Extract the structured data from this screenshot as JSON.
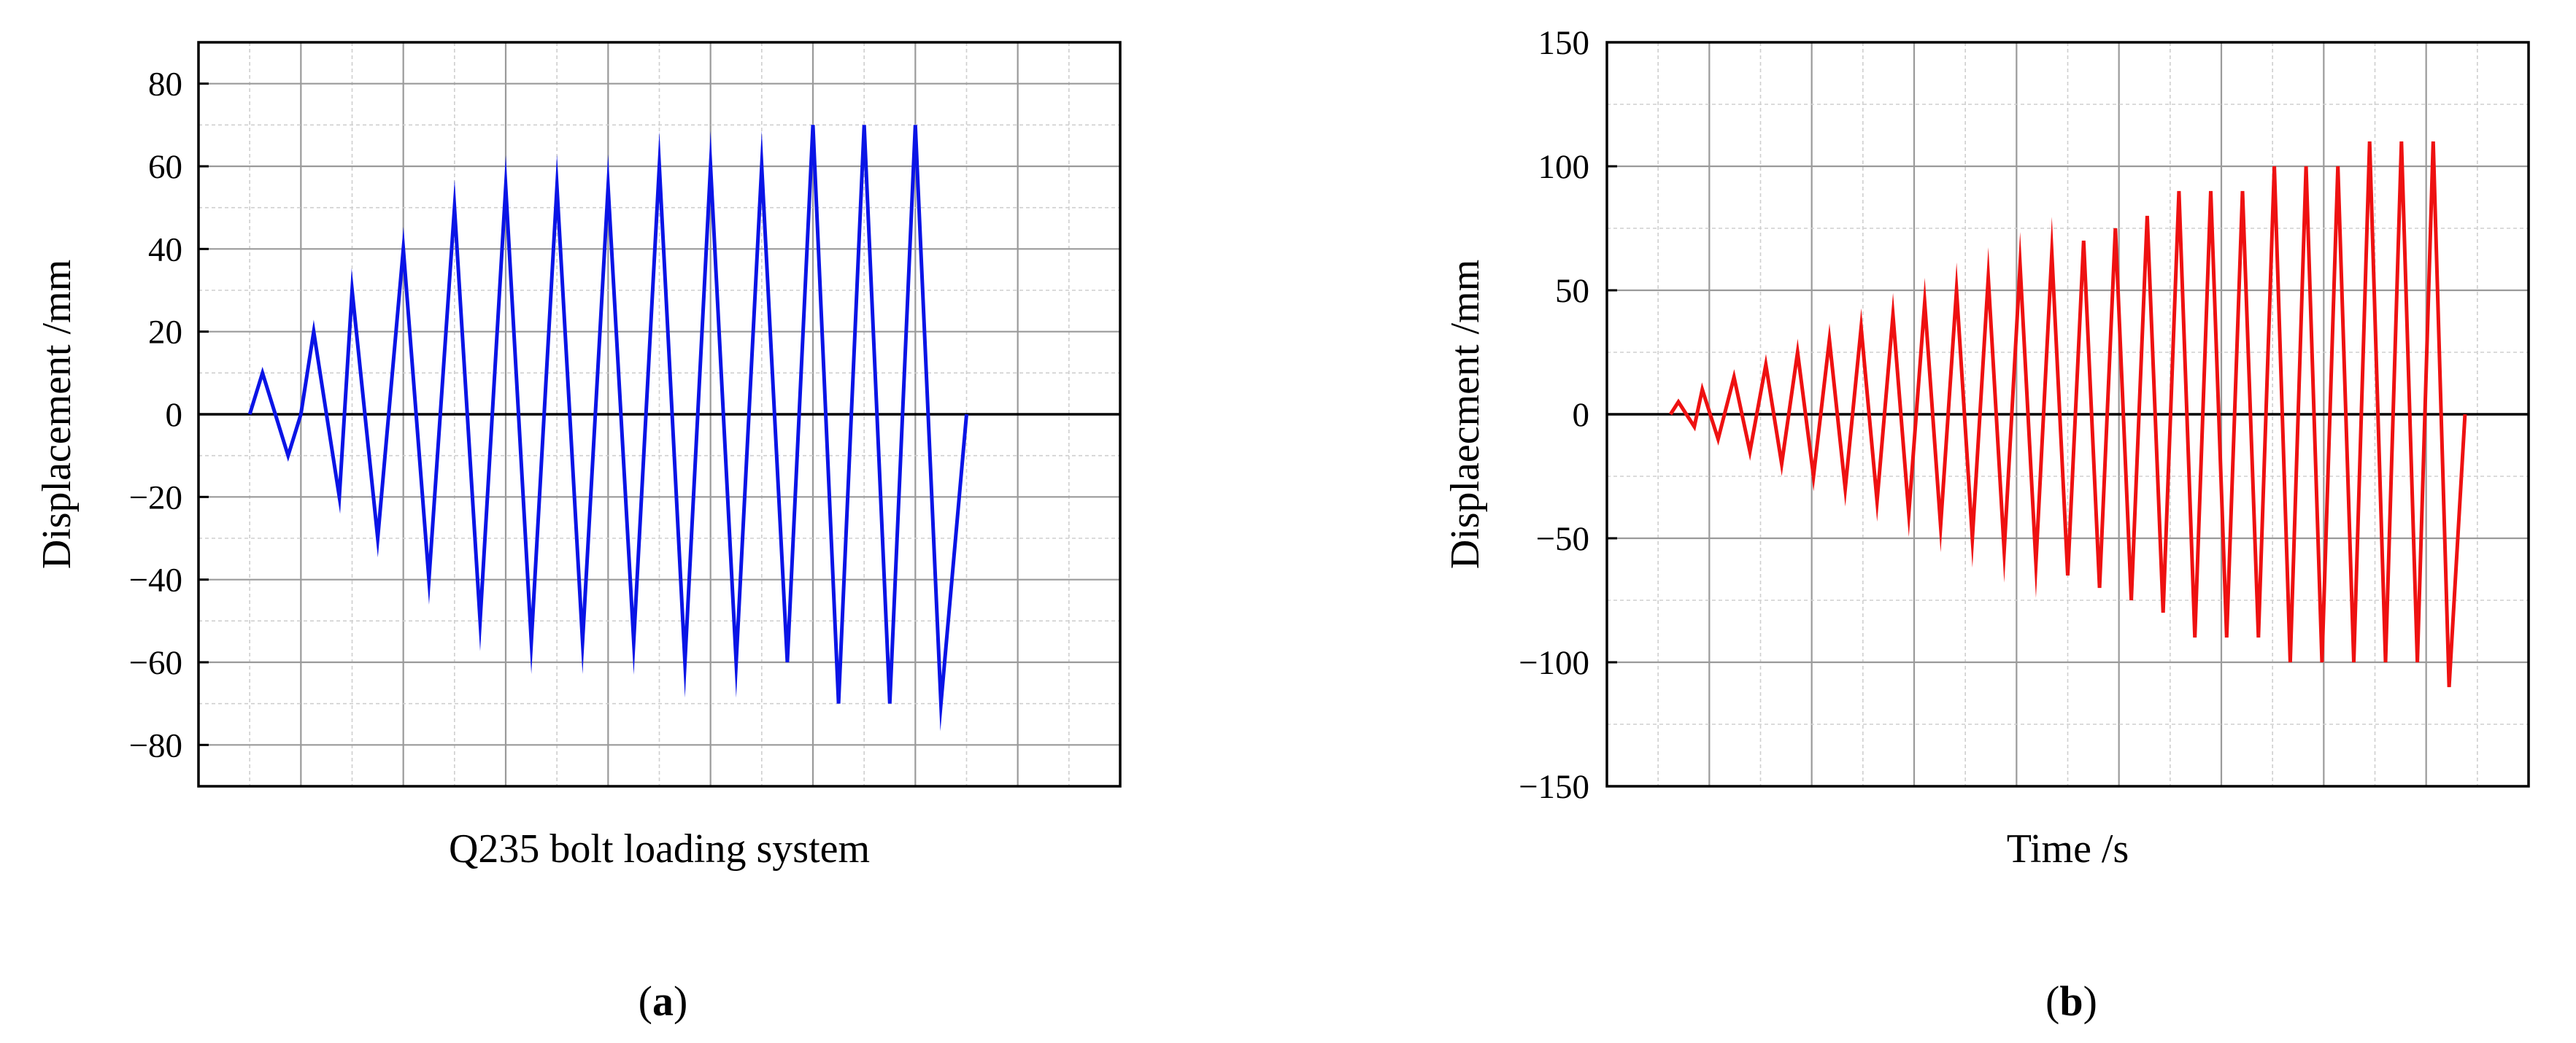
{
  "chart_data": [
    {
      "type": "line",
      "panel_label": {
        "open": "(",
        "letter": "a",
        "close": ")"
      },
      "xlabel": "Q235 bolt loading system",
      "ylabel": "Displacement /mm",
      "ylim": [
        -90,
        90
      ],
      "yticks": [
        -80,
        -60,
        -40,
        -20,
        0,
        20,
        40,
        60,
        80
      ],
      "ytick_labels": [
        "−80",
        "−60",
        "−40",
        "−20",
        "0",
        "20",
        "40",
        "60",
        "80"
      ],
      "xlim": [
        -2,
        34
      ],
      "grid": true,
      "grid_minor": true,
      "zero_line": true,
      "series": [
        {
          "color": "#0a14e6",
          "x": [
            0,
            0.5,
            1,
            1.5,
            2,
            2.5,
            3,
            3.5,
            4,
            5,
            6,
            7,
            8,
            9,
            10,
            11,
            12,
            13,
            14,
            15,
            16,
            17,
            18,
            19,
            20,
            21,
            22,
            23,
            24,
            25,
            26,
            27,
            28
          ],
          "y": [
            0,
            10,
            0,
            -10,
            0,
            20,
            0,
            -20,
            30,
            -30,
            40,
            -40,
            50,
            -50,
            55,
            -55,
            55,
            -55,
            55,
            -55,
            60,
            -60,
            60,
            -60,
            60,
            -60,
            70,
            -70,
            70,
            -70,
            70,
            -70,
            0
          ]
        }
      ]
    },
    {
      "type": "line",
      "panel_label": {
        "open": "(",
        "letter": "b",
        "close": ")"
      },
      "xlabel": "Time /s",
      "ylabel": "Displaecment /mm",
      "ylim": [
        -150,
        150
      ],
      "yticks": [
        -150,
        -100,
        -50,
        0,
        50,
        100,
        150
      ],
      "ytick_labels": [
        "−150",
        "−100",
        "−50",
        "0",
        "50",
        "100",
        "150"
      ],
      "xlim": [
        -4,
        54
      ],
      "grid": true,
      "grid_minor": true,
      "zero_line": true,
      "series": [
        {
          "color": "#ee1111",
          "x": [
            0,
            0.5,
            1,
            1.5,
            2,
            3,
            4,
            5,
            6,
            7,
            8,
            9,
            10,
            11,
            12,
            13,
            14,
            15,
            16,
            17,
            18,
            19,
            20,
            21,
            22,
            23,
            24,
            25,
            26,
            27,
            28,
            29,
            30,
            31,
            32,
            33,
            34,
            35,
            36,
            37,
            38,
            39,
            40,
            41,
            42,
            43,
            44,
            45,
            46,
            47,
            48,
            49,
            50
          ],
          "y": [
            0,
            5,
            0,
            -5,
            10,
            -10,
            15,
            -15,
            20,
            -20,
            25,
            -25,
            30,
            -30,
            35,
            -35,
            40,
            -40,
            45,
            -45,
            50,
            -50,
            55,
            -55,
            60,
            -60,
            65,
            -65,
            70,
            -70,
            75,
            -75,
            80,
            -80,
            90,
            -90,
            90,
            -90,
            90,
            -90,
            100,
            -100,
            100,
            -100,
            100,
            -100,
            110,
            -100,
            110,
            -100,
            110,
            -110,
            0
          ]
        }
      ]
    }
  ]
}
